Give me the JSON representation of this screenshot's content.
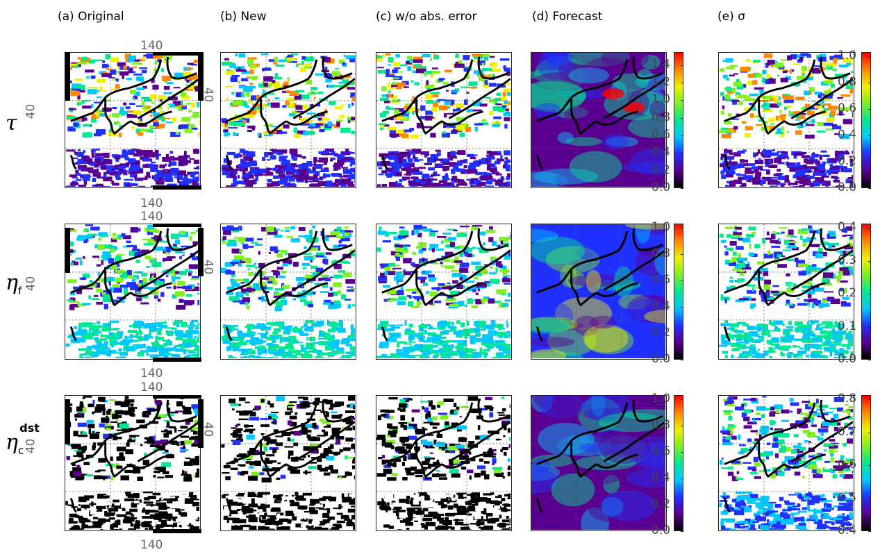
{
  "columns": [
    {
      "id": "a",
      "title": "(a) Original"
    },
    {
      "id": "b",
      "title": "(b) New"
    },
    {
      "id": "c",
      "title": "(c) w/o abs. error"
    },
    {
      "id": "d",
      "title": "(d) Forecast"
    },
    {
      "id": "e",
      "title": "(e)  σ"
    }
  ],
  "rows": [
    {
      "id": "tau",
      "symbol": "τ",
      "sub": "",
      "sup": ""
    },
    {
      "id": "eta_f",
      "symbol": "η",
      "sub": "f",
      "sup": ""
    },
    {
      "id": "eta_c_dst",
      "symbol": "η",
      "sub": "c",
      "sup": "dst"
    }
  ],
  "axis_labels": {
    "lon": "140",
    "lat": "40"
  },
  "colors": {
    "colormap": [
      "#000000",
      "#5a0090",
      "#2030ff",
      "#00c8ff",
      "#00e890",
      "#80f020",
      "#f0f000",
      "#ff8800",
      "#ff0000"
    ],
    "coastline": "#000000",
    "grid": "#555555"
  },
  "chart_data": [
    {
      "type": "heatmap",
      "panel": "(d) Forecast",
      "variable": "τ",
      "colorbar": {
        "min": 0.0,
        "max": 1.5,
        "ticks": [
          "0.0",
          "0.2",
          "0.4",
          "0.6",
          "0.8",
          "1.0",
          "1.2",
          "1.4"
        ],
        "values": [
          0.0,
          0.2,
          0.4,
          0.6,
          0.8,
          1.0,
          1.2,
          1.4
        ]
      }
    },
    {
      "type": "heatmap",
      "panel": "(e) σ",
      "variable": "τ",
      "colorbar": {
        "min": 0.0,
        "max": 1.0,
        "ticks": [
          "0.0",
          "0.2",
          "0.4",
          "0.6",
          "0.8",
          "1.0"
        ],
        "values": [
          0.0,
          0.2,
          0.4,
          0.6,
          0.8,
          1.0
        ]
      }
    },
    {
      "type": "heatmap",
      "panel": "(d) Forecast",
      "variable": "η_f",
      "colorbar": {
        "min": 0.0,
        "max": 1.0,
        "ticks": [
          "0.0",
          "0.2",
          "0.4",
          "0.6",
          "0.8",
          "1.0"
        ],
        "values": [
          0.0,
          0.2,
          0.4,
          0.6,
          0.8,
          1.0
        ]
      }
    },
    {
      "type": "heatmap",
      "panel": "(e) σ",
      "variable": "η_f",
      "colorbar": {
        "min": 0.0,
        "max": 0.4,
        "ticks": [
          "0.0",
          "0.1",
          "0.2",
          "0.3",
          "0.4"
        ],
        "values": [
          0.0,
          0.1,
          0.2,
          0.3,
          0.4
        ]
      }
    },
    {
      "type": "heatmap",
      "panel": "(d) Forecast",
      "variable": "η_c^dst",
      "colorbar": {
        "min": 0.0,
        "max": 1.0,
        "ticks": [
          "0.0",
          "0.2",
          "0.4",
          "0.6",
          "0.8",
          "1.0"
        ],
        "values": [
          0.0,
          0.2,
          0.4,
          0.6,
          0.8,
          1.0
        ]
      }
    },
    {
      "type": "heatmap",
      "panel": "(e) σ",
      "variable": "η_c^dst",
      "colorbar": {
        "min": 0.4,
        "max": 0.8,
        "ticks": [
          "0.4",
          "0.5",
          "0.6",
          "0.7",
          "0.8"
        ],
        "values": [
          0.4,
          0.5,
          0.6,
          0.7,
          0.8
        ]
      }
    }
  ]
}
